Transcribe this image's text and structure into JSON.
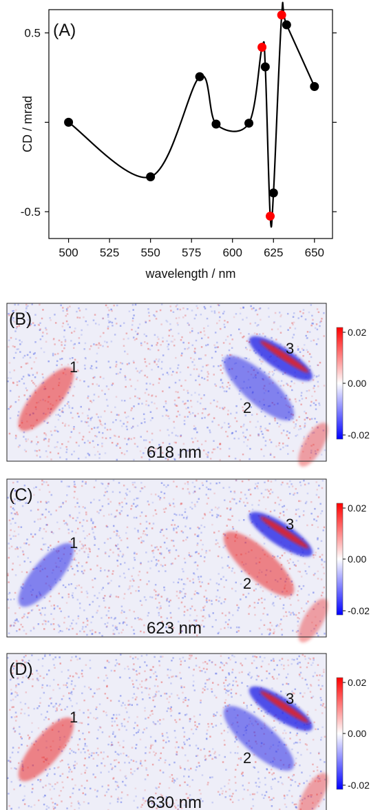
{
  "chart_data": [
    {
      "type": "line",
      "panel_label": "(A)",
      "xlabel": "wavelength / nm",
      "ylabel": "CD / mrad",
      "xlim": [
        488,
        661
      ],
      "ylim": [
        -0.65,
        0.63
      ],
      "x_ticks": [
        500,
        525,
        550,
        575,
        600,
        625,
        650
      ],
      "y_ticks": [
        -0.5,
        0,
        0.5
      ],
      "y_tick_labels": [
        "-0.5",
        "",
        "0.5"
      ],
      "grid": false,
      "curve_color": "#000000",
      "marker_color": "#000000",
      "highlight_color": "#ff0000",
      "series": [
        {
          "x": [
            500,
            550,
            580,
            590,
            610,
            618,
            620,
            623,
            625,
            630,
            633,
            650
          ],
          "y": [
            0.0,
            -0.305,
            0.255,
            -0.01,
            -0.005,
            0.42,
            0.31,
            -0.525,
            -0.395,
            0.6,
            0.545,
            0.2
          ],
          "highlight": [
            false,
            false,
            false,
            false,
            false,
            true,
            false,
            true,
            false,
            true,
            false,
            false
          ]
        }
      ]
    },
    {
      "type": "heatmap",
      "panel_label": "(B)",
      "wavelength_label": "618 nm",
      "colorbar_ticks": [
        "0.02",
        "0.00",
        "-0.02"
      ],
      "colorscale": [
        "#0000ff",
        "#ffffff",
        "#ff0000"
      ],
      "regions": [
        {
          "label": "1",
          "sign": "positive"
        },
        {
          "label": "2",
          "sign": "negative"
        },
        {
          "label": "3",
          "sign": "negative"
        }
      ]
    },
    {
      "type": "heatmap",
      "panel_label": "(C)",
      "wavelength_label": "623 nm",
      "colorbar_ticks": [
        "0.02",
        "0.00",
        "-0.02"
      ],
      "colorscale": [
        "#0000ff",
        "#ffffff",
        "#ff0000"
      ],
      "regions": [
        {
          "label": "1",
          "sign": "negative"
        },
        {
          "label": "2",
          "sign": "positive"
        },
        {
          "label": "3",
          "sign": "negative"
        }
      ]
    },
    {
      "type": "heatmap",
      "panel_label": "(D)",
      "wavelength_label": "630 nm",
      "colorbar_ticks": [
        "0.02",
        "0.00",
        "-0.02"
      ],
      "colorscale": [
        "#0000ff",
        "#ffffff",
        "#ff0000"
      ],
      "regions": [
        {
          "label": "1",
          "sign": "positive"
        },
        {
          "label": "2",
          "sign": "negative"
        },
        {
          "label": "3",
          "sign": "negative"
        }
      ]
    }
  ]
}
